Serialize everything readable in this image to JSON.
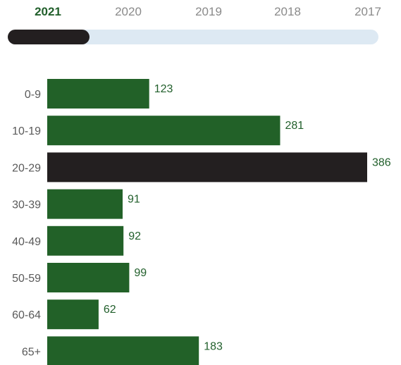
{
  "years": [
    "2021",
    "2020",
    "2019",
    "2018",
    "2017"
  ],
  "selected_year": "2021",
  "colors": {
    "bar": "#226128",
    "highlight": "#231f20",
    "value_label": "#215f2b",
    "category_label": "#5a5a5a",
    "track": "#dde9f3",
    "thumb": "#231f20"
  },
  "chart_data": {
    "type": "bar",
    "orientation": "horizontal",
    "categories": [
      "0-9",
      "10-19",
      "20-29",
      "30-39",
      "40-49",
      "50-59",
      "60-64",
      "65+"
    ],
    "values": [
      123,
      281,
      386,
      91,
      92,
      99,
      62,
      183
    ],
    "highlight_index": 2,
    "title": "",
    "xlabel": "",
    "ylabel": "",
    "xlim": [
      0,
      386
    ],
    "grid": false,
    "legend": "none"
  }
}
